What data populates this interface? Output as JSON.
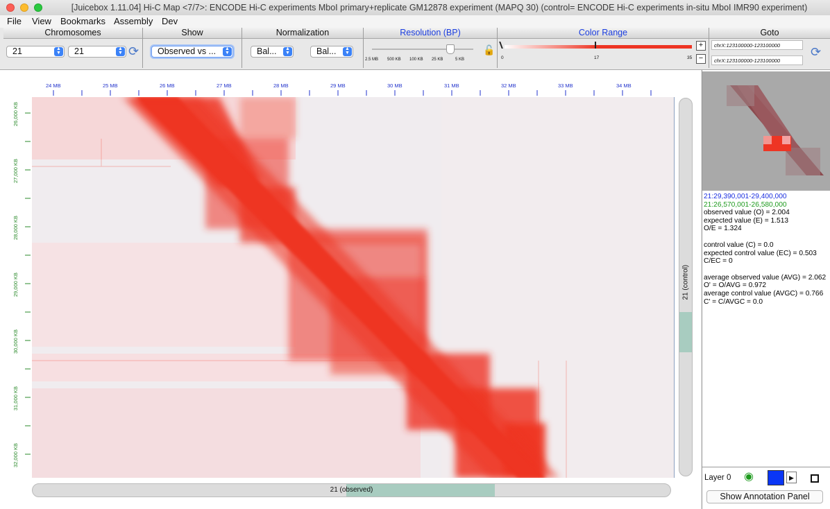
{
  "window": {
    "title": "[Juicebox 1.11.04] Hi-C Map <7/7>:  ENCODE Hi-C experiments MboI primary+replicate GM12878 experiment (MAPQ 30)  (control=  ENCODE Hi-C experiments in-situ MboI IMR90 experiment)"
  },
  "menu": [
    "File",
    "View",
    "Bookmarks",
    "Assembly",
    "Dev"
  ],
  "toolbar": {
    "chromosomes_label": "Chromosomes",
    "chrom1": "21",
    "chrom2": "21",
    "show_label": "Show",
    "show_value": "Observed vs ...",
    "normalization_label": "Normalization",
    "norm1": "Bal...",
    "norm2": "Bal...",
    "resolution_label": "Resolution (BP)",
    "resolution_ticks": [
      "2.5 MB",
      "500 KB",
      "100 KB",
      "25 KB",
      "5 KB"
    ],
    "resolution_fraction": 0.78,
    "color_range_label": "Color Range",
    "color_min": "0",
    "color_mid": "17",
    "color_max": "35",
    "color_slider_fraction": 0.5,
    "goto_label": "Goto",
    "goto1": "chrX:123100000-123100000",
    "goto2": "chrX:123100000-123100000"
  },
  "map": {
    "top_ticks": [
      "24 MB",
      "25 MB",
      "26 MB",
      "27 MB",
      "28 MB",
      "29 MB",
      "30 MB",
      "31 MB",
      "32 MB",
      "33 MB",
      "34 MB"
    ],
    "left_ticks": [
      "26,000 KB",
      "27,000 KB",
      "28,000 KB",
      "29,000 KB",
      "30,000 KB",
      "31,000 KB",
      "32,000 KB"
    ],
    "h_scroll_label": "21 (observed)",
    "v_scroll_label": "21 (control)",
    "accent_color": "#ee3524"
  },
  "info": {
    "line1": "21:29,390,001-29,400,000",
    "line2": "21:26,570,001-26,580,000",
    "line3": "observed value (O) = 2.004",
    "line4": "expected value (E) = 1.513",
    "line5": "O/E = 1.324",
    "line6": "control value (C) = 0.0",
    "line7": "expected control value (EC) = 0.503",
    "line8": "C/EC = 0",
    "line9": "average observed value (AVG) = 2.062",
    "line10": "O' = O/AVG = 0.972",
    "line11": "average control value (AVGC) = 0.766",
    "line12": "C' = C/AVGC = 0.0"
  },
  "layer": {
    "label": "Layer 0",
    "annotation_button": "Show Annotation Panel"
  }
}
